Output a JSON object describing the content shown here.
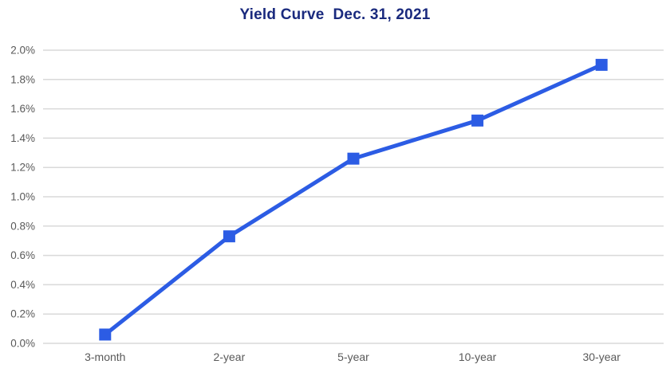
{
  "title": "Yield Curve  Dec. 31, 2021",
  "colors": {
    "title": "#1a2a7e",
    "line": "#2c5ce4",
    "marker": "#2c5ce4",
    "grid": "#d9d9d9",
    "axis_label": "#595959",
    "background": "#ffffff"
  },
  "chart_data": {
    "type": "line",
    "title": "Yield Curve  Dec. 31, 2021",
    "categories": [
      "3-month",
      "2-year",
      "5-year",
      "10-year",
      "30-year"
    ],
    "series": [
      {
        "name": "Yield",
        "values": [
          0.06,
          0.73,
          1.26,
          1.52,
          1.9
        ]
      }
    ],
    "ylim": [
      0.0,
      2.0
    ],
    "ytick_step": 0.2,
    "yticklabels": [
      "0.0%",
      "0.2%",
      "0.4%",
      "0.6%",
      "0.8%",
      "1.0%",
      "1.2%",
      "1.4%",
      "1.6%",
      "1.8%",
      "2.0%"
    ],
    "xlabel": "",
    "ylabel": "",
    "grid": "horizontal",
    "legend": "none",
    "marker": "square"
  }
}
